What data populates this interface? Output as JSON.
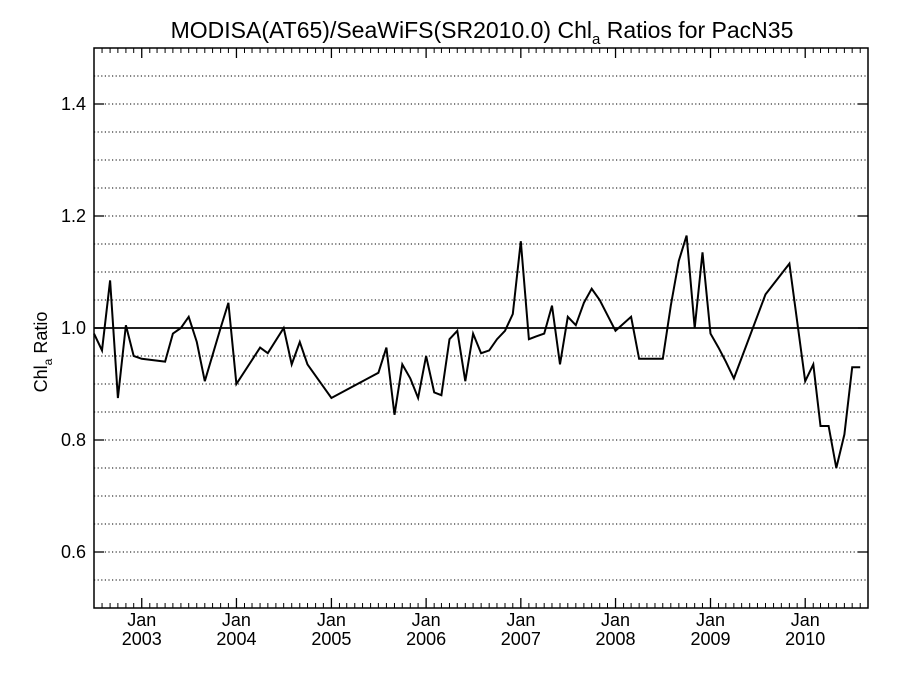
{
  "chart_data": {
    "type": "line",
    "title": "MODISA(AT65)/SeaWiFS(SR2010.0)  Chl",
    "title_sub": "a",
    "title_tail": " Ratios for PacN35",
    "ylabel": "Chl",
    "ylabel_sub": "a",
    "ylabel_tail": " Ratio",
    "xlim": [
      "2002-07-01",
      "2010-08-31"
    ],
    "ylim": [
      0.5,
      1.5
    ],
    "y_ticks": [
      0.6,
      0.8,
      1.0,
      1.2,
      1.4
    ],
    "y_tick_labels": [
      "0.6",
      "0.8",
      "1.0",
      "1.2",
      "1.4"
    ],
    "y_gridlines": [
      0.55,
      0.6,
      0.65,
      0.7,
      0.75,
      0.8,
      0.85,
      0.9,
      0.95,
      1.05,
      1.1,
      1.15,
      1.2,
      1.25,
      1.3,
      1.35,
      1.4,
      1.45
    ],
    "grid": "dotted horizontal",
    "reference_line": 1.0,
    "x_ticks": [
      {
        "date": "2003-01-01",
        "month": "Jan",
        "year": "2003"
      },
      {
        "date": "2004-01-01",
        "month": "Jan",
        "year": "2004"
      },
      {
        "date": "2005-01-01",
        "month": "Jan",
        "year": "2005"
      },
      {
        "date": "2006-01-01",
        "month": "Jan",
        "year": "2006"
      },
      {
        "date": "2007-01-01",
        "month": "Jan",
        "year": "2007"
      },
      {
        "date": "2008-01-01",
        "month": "Jan",
        "year": "2008"
      },
      {
        "date": "2009-01-01",
        "month": "Jan",
        "year": "2009"
      },
      {
        "date": "2010-01-01",
        "month": "Jan",
        "year": "2010"
      }
    ],
    "line_color": "#000000",
    "series": [
      {
        "x": [
          "2002-07-01",
          "2002-08-01",
          "2002-09-01",
          "2002-10-01",
          "2002-11-01",
          "2002-12-01",
          "2003-01-01",
          "2003-04-01",
          "2003-05-01",
          "2003-06-01",
          "2003-07-01",
          "2003-08-01",
          "2003-09-01",
          "2003-11-01",
          "2003-12-01",
          "2004-01-01",
          "2004-04-01",
          "2004-05-01",
          "2004-07-01",
          "2004-08-01",
          "2004-09-01",
          "2004-10-01",
          "2005-01-01",
          "2005-05-01",
          "2005-07-01",
          "2005-08-01",
          "2005-09-01",
          "2005-10-01",
          "2005-11-01",
          "2005-12-01",
          "2006-01-01",
          "2006-02-01",
          "2006-03-01",
          "2006-04-01",
          "2006-05-01",
          "2006-06-01",
          "2006-07-01",
          "2006-08-01",
          "2006-09-01",
          "2006-10-01",
          "2006-11-01",
          "2006-12-01",
          "2007-01-01",
          "2007-02-01",
          "2007-03-01",
          "2007-04-01",
          "2007-05-01",
          "2007-06-01",
          "2007-07-01",
          "2007-08-01",
          "2007-09-01",
          "2007-10-01",
          "2007-11-01",
          "2008-01-01",
          "2008-03-01",
          "2008-04-01",
          "2008-05-01",
          "2008-06-01",
          "2008-07-01",
          "2008-08-01",
          "2008-09-01",
          "2008-10-01",
          "2008-11-01",
          "2008-12-01",
          "2009-01-01",
          "2009-02-01",
          "2009-03-01",
          "2009-04-01",
          "2009-08-01",
          "2009-11-01",
          "2010-01-01",
          "2010-02-01",
          "2010-03-01",
          "2010-04-01",
          "2010-05-01",
          "2010-06-01",
          "2010-07-01",
          "2010-08-01"
        ],
        "values": [
          0.99,
          0.96,
          1.085,
          0.875,
          1.005,
          0.95,
          0.945,
          0.94,
          0.99,
          1.0,
          1.02,
          0.975,
          0.905,
          1.0,
          1.045,
          0.9,
          0.965,
          0.955,
          1.0,
          0.935,
          0.975,
          0.935,
          0.875,
          0.905,
          0.92,
          0.965,
          0.845,
          0.935,
          0.91,
          0.875,
          0.95,
          0.885,
          0.88,
          0.98,
          0.995,
          0.905,
          0.99,
          0.955,
          0.96,
          0.98,
          0.995,
          1.025,
          1.155,
          0.98,
          0.985,
          0.99,
          1.04,
          0.935,
          1.02,
          1.005,
          1.045,
          1.07,
          1.05,
          0.995,
          1.02,
          0.945,
          0.945,
          0.945,
          0.945,
          1.04,
          1.12,
          1.165,
          1.0,
          1.135,
          0.99,
          0.965,
          0.94,
          0.91,
          1.06,
          1.115,
          0.905,
          0.935,
          0.825,
          0.825,
          0.75,
          0.81,
          0.93,
          0.93
        ]
      }
    ]
  }
}
